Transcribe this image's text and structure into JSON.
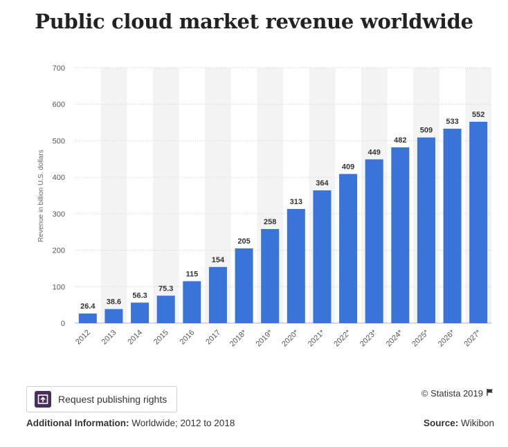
{
  "title": "Public cloud market revenue worldwide",
  "chart_data": {
    "type": "bar",
    "title": "Public cloud market revenue worldwide",
    "ylabel": "Revenue in billion U.S. dollars",
    "xlabel": "",
    "ylim": [
      0,
      700
    ],
    "yticks": [
      0,
      100,
      200,
      300,
      400,
      500,
      600,
      700
    ],
    "grid": true,
    "categories": [
      "2012",
      "2013",
      "2014",
      "2015",
      "2016",
      "2017",
      "2018*",
      "2019*",
      "2020*",
      "2021*",
      "2022*",
      "2023*",
      "2024*",
      "2025*",
      "2026*",
      "2027*"
    ],
    "values": [
      26.4,
      38.6,
      56.3,
      75.3,
      115,
      154,
      205,
      258,
      313,
      364,
      409,
      449,
      482,
      509,
      533,
      552
    ],
    "value_labels": [
      "26.4",
      "38.6",
      "56.3",
      "75.3",
      "115",
      "154",
      "205",
      "258",
      "313",
      "364",
      "409",
      "449",
      "482",
      "509",
      "533",
      "552"
    ],
    "bar_color": "#3a74d8"
  },
  "footer": {
    "publish_label": "Request publishing rights",
    "copyright": "© Statista 2019",
    "additional_info_label": "Additional Information:",
    "additional_info_value": " Worldwide; 2012 to 2018",
    "source_label": "Source:",
    "source_value": " Wikibon"
  },
  "icons": {
    "publish": "publish-rights-icon",
    "flag": "flag-icon"
  }
}
